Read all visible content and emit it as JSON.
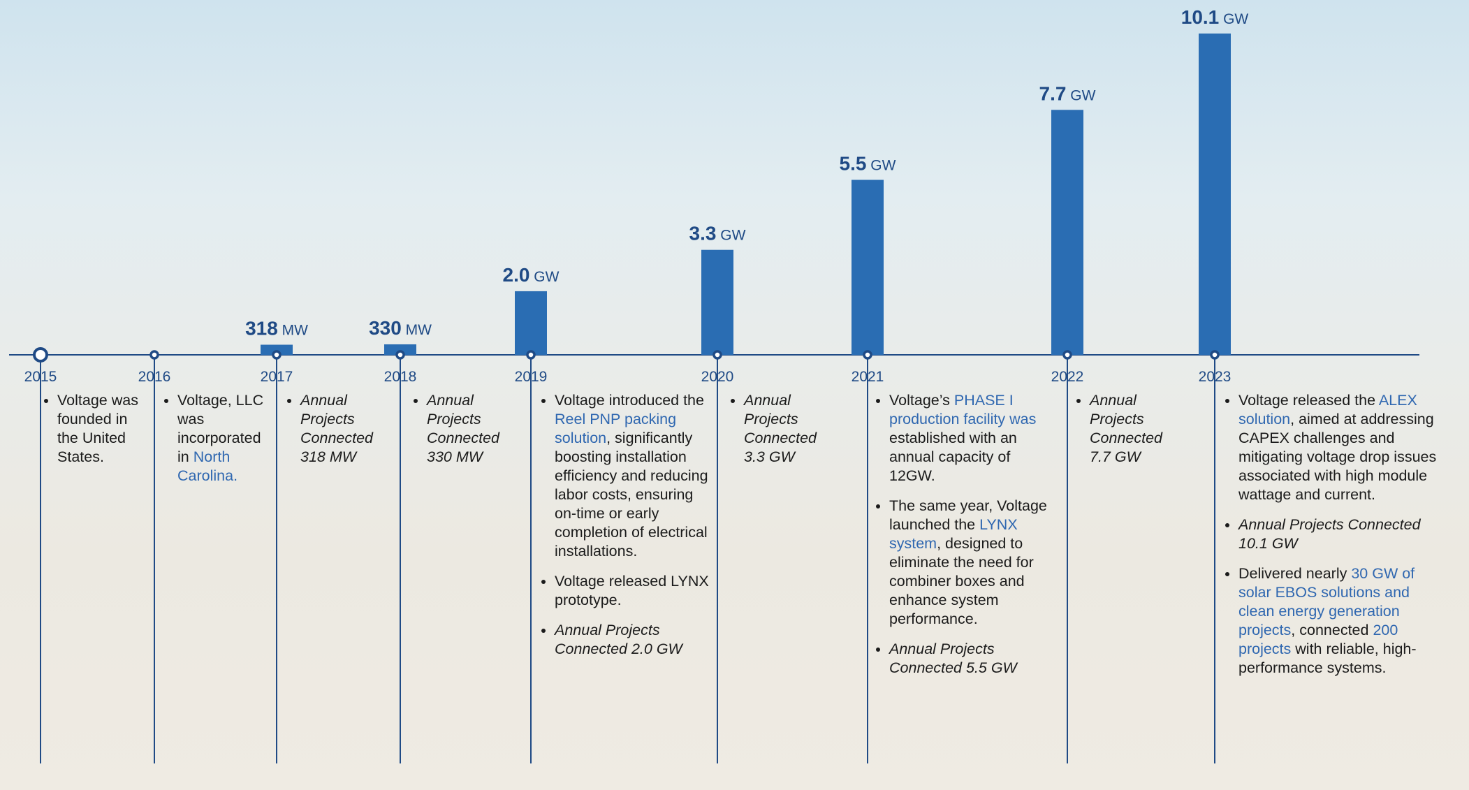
{
  "chart_data": {
    "type": "bar",
    "categories": [
      "2015",
      "2016",
      "2017",
      "2018",
      "2019",
      "2020",
      "2021",
      "2022",
      "2023"
    ],
    "values": [
      null,
      null,
      0.318,
      0.33,
      2.0,
      3.3,
      5.5,
      7.7,
      10.1
    ],
    "value_labels": [
      null,
      null,
      "318 MW",
      "330 MW",
      "2.0 GW",
      "3.3 GW",
      "5.5 GW",
      "7.7 GW",
      "10.1 GW"
    ],
    "color": "#2a6db3"
  },
  "notes": [
    [
      {
        "parts": [
          {
            "text": "Voltage was founded in the United States."
          }
        ]
      }
    ],
    [
      {
        "parts": [
          {
            "text": "Voltage, LLC was incorporated in "
          },
          {
            "text": "North Carolina.",
            "color": "#2f67b0"
          }
        ]
      }
    ],
    [
      {
        "italic": true,
        "parts": [
          {
            "text": "Annual Projects Connected 318 MW"
          }
        ]
      }
    ],
    [
      {
        "italic": true,
        "parts": [
          {
            "text": "Annual Projects Connected 330 MW"
          }
        ]
      }
    ],
    [
      {
        "parts": [
          {
            "text": "Voltage introduced the "
          },
          {
            "text": "Reel PNP packing solution",
            "color": "#2f67b0"
          },
          {
            "text": ", significantly boosting installation efficiency and reducing labor costs, ensuring on-time or early completion of electrical installations."
          }
        ]
      },
      {
        "parts": [
          {
            "text": "Voltage released LYNX prototype."
          }
        ]
      },
      {
        "italic": true,
        "parts": [
          {
            "text": "Annual Projects Connected 2.0 GW"
          }
        ]
      }
    ],
    [
      {
        "italic": true,
        "parts": [
          {
            "text": "Annual Projects Connected 3.3 GW"
          }
        ]
      }
    ],
    [
      {
        "parts": [
          {
            "text": "Voltage’s "
          },
          {
            "text": "PHASE I production facility was",
            "color": "#2f67b0"
          },
          {
            "text": " established with an annual capacity of 12GW."
          }
        ]
      },
      {
        "parts": [
          {
            "text": "The same year, Voltage launched the "
          },
          {
            "text": "LYNX system",
            "color": "#2f67b0"
          },
          {
            "text": ", designed to eliminate the need for combiner boxes and enhance system performance."
          }
        ]
      },
      {
        "italic": true,
        "parts": [
          {
            "text": "Annual Projects Connected 5.5 GW"
          }
        ]
      }
    ],
    [
      {
        "italic": true,
        "parts": [
          {
            "text": "Annual Projects Connected 7.7 GW"
          }
        ]
      }
    ],
    [
      {
        "parts": [
          {
            "text": "Voltage released the "
          },
          {
            "text": "ALEX solution",
            "color": "#2f67b0"
          },
          {
            "text": ", aimed at addressing CAPEX challenges and mitigating voltage drop issues associated with high module wattage and current."
          }
        ]
      },
      {
        "italic": true,
        "parts": [
          {
            "text": "Annual Projects Connected 10.1 GW"
          }
        ]
      },
      {
        "parts": [
          {
            "text": "Delivered nearly "
          },
          {
            "text": "30 GW of solar EBOS solutions and clean energy generation projects",
            "color": "#2f67b0"
          },
          {
            "text": ", connected "
          },
          {
            "text": "200 projects",
            "color": "#2f67b0"
          },
          {
            "text": " with reliable, high-performance systems."
          }
        ]
      }
    ]
  ]
}
